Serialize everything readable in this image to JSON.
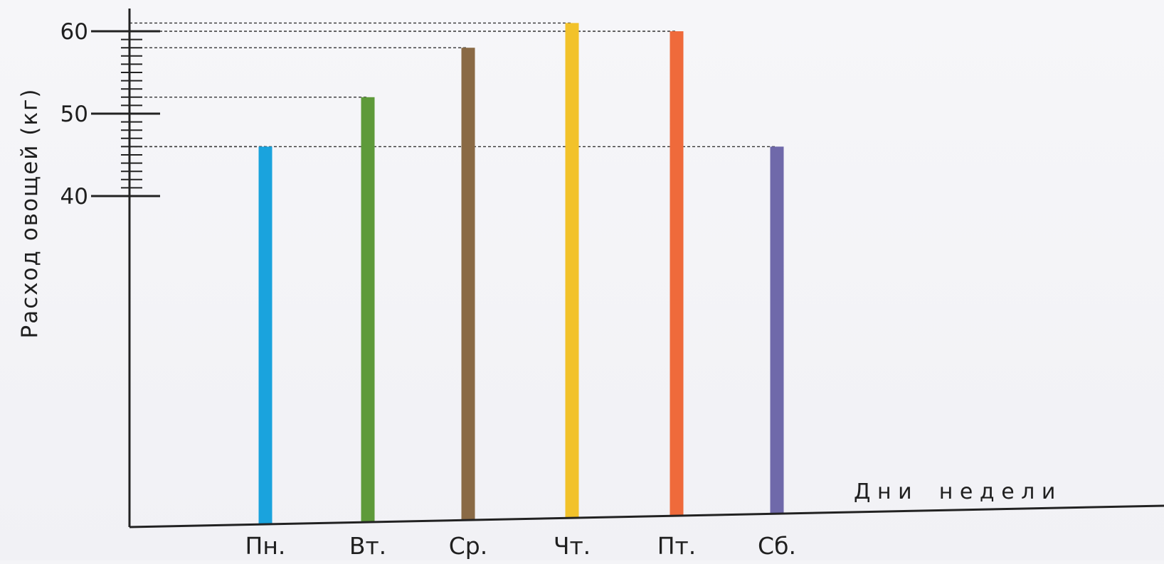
{
  "chart_data": {
    "type": "bar",
    "categories": [
      "Пн.",
      "Вт.",
      "Ср.",
      "Чт.",
      "Пт.",
      "Сб."
    ],
    "values": [
      46,
      52,
      58,
      61,
      60,
      46
    ],
    "colors": [
      "#1aa3dd",
      "#5e9a3a",
      "#8a6a45",
      "#f2c22a",
      "#ef6a3b",
      "#6f69aa"
    ],
    "ylabel": "Расход овощей (кг)",
    "xlabel": "Д н и    н е д е л и",
    "ylim": [
      40,
      60
    ],
    "yticks": [
      40,
      50,
      60
    ],
    "grid": false,
    "reference_lines": "dashed lines from each bar top to the y-axis"
  }
}
